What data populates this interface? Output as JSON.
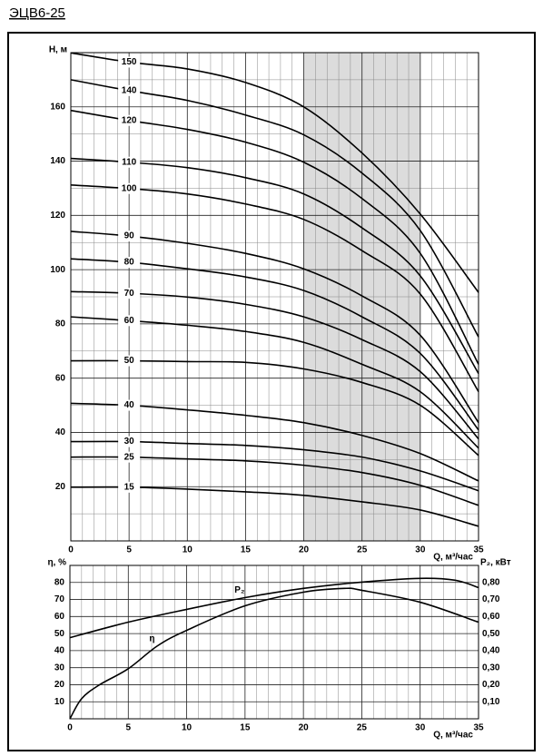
{
  "page_title": "ЭЦВ6-25",
  "chart_data": [
    {
      "type": "line",
      "x_label": "Q, м³/час",
      "y_label": "H, м",
      "x": [
        0,
        5,
        10,
        15,
        20,
        25,
        30,
        35
      ],
      "series": [
        {
          "name": "150",
          "color": "#000000",
          "values": [
            179.9,
            176.5,
            174,
            169,
            160,
            143,
            120.5,
            91.6
          ]
        },
        {
          "name": "140",
          "color": "#000000",
          "values": [
            170,
            166,
            162.4,
            157,
            149.7,
            135.6,
            114.4,
            75.2
          ]
        },
        {
          "name": "120",
          "color": "#000000",
          "values": [
            158.7,
            155,
            151.7,
            147,
            139.6,
            126.2,
            106,
            65.1
          ]
        },
        {
          "name": "110",
          "color": "#000000",
          "values": [
            141,
            139.6,
            137.6,
            133.9,
            127.9,
            115.4,
            97.7,
            61.7
          ]
        },
        {
          "name": "100",
          "color": "#000000",
          "values": [
            131.2,
            129.9,
            127.9,
            124.2,
            118.5,
            107,
            91,
            55
          ]
        },
        {
          "name": "90",
          "color": "#000000",
          "values": [
            114.1,
            112.4,
            109.7,
            106,
            100.3,
            90.3,
            75.8,
            43.6
          ]
        },
        {
          "name": "80",
          "color": "#000000",
          "values": [
            104,
            102.7,
            100.3,
            97.3,
            92.3,
            82.6,
            69.1,
            40.9
          ]
        },
        {
          "name": "70",
          "color": "#000000",
          "values": [
            91.9,
            91.3,
            89.9,
            87.2,
            82.6,
            74.2,
            62.4,
            37.6
          ]
        },
        {
          "name": "60",
          "color": "#000000",
          "values": [
            82.6,
            81.2,
            79.5,
            77.2,
            73.2,
            65.1,
            55,
            34.2
          ]
        },
        {
          "name": "50",
          "color": "#000000",
          "values": [
            66.4,
            66.4,
            66.1,
            65.8,
            63.4,
            58.4,
            50,
            31.5
          ]
        },
        {
          "name": "40",
          "color": "#000000",
          "values": [
            50.7,
            50,
            48.3,
            46.3,
            43.6,
            38.9,
            32.2,
            22.1
          ]
        },
        {
          "name": "30",
          "color": "#000000",
          "values": [
            36.6,
            36.6,
            35.9,
            35.2,
            33.6,
            30.9,
            25.8,
            18.5
          ]
        },
        {
          "name": "25",
          "color": "#000000",
          "values": [
            30.9,
            30.9,
            30.2,
            29.5,
            27.9,
            25.2,
            20.5,
            13.1
          ]
        },
        {
          "name": "15",
          "color": "#000000",
          "values": [
            19.8,
            19.8,
            19.1,
            18.1,
            16.8,
            14.4,
            11.4,
            5.4
          ]
        }
      ],
      "xlim": [
        0,
        35
      ],
      "xticks": [
        0,
        5,
        10,
        15,
        20,
        25,
        30,
        35
      ],
      "x_minor_ticks": [
        1,
        2,
        3,
        4,
        6,
        7,
        8,
        9,
        11,
        12,
        13,
        14,
        16,
        17,
        18,
        19,
        21,
        22,
        23,
        24,
        26,
        27,
        28,
        29,
        31,
        32,
        33,
        34
      ],
      "ylim": [
        0,
        180
      ],
      "yticks": [
        20,
        40,
        60,
        80,
        100,
        120,
        140,
        160
      ],
      "y_minor_ticks": [
        10,
        30,
        50,
        70,
        90,
        110,
        130,
        150,
        170
      ],
      "grid": true,
      "shaded_range": [
        20,
        30
      ],
      "shade_color": "#dcdcdc"
    },
    {
      "type": "line",
      "x_label": "Q, м³/час",
      "y_label": "η, %",
      "y2_label": "P₂, кВт",
      "series": [
        {
          "name": "η",
          "color": "#000000",
          "x": [
            0,
            1,
            2.5,
            5,
            7.5,
            10,
            15,
            20,
            23.5,
            25,
            30,
            35
          ],
          "values": [
            0,
            11.8,
            19.8,
            29.4,
            42.8,
            51.9,
            66.3,
            74.3,
            76.5,
            75.4,
            68.4,
            56.7
          ]
        },
        {
          "name": "P₂",
          "color": "#000000",
          "axis": "y2",
          "x": [
            0,
            5,
            10,
            15,
            20,
            25,
            30,
            33,
            35
          ],
          "values": [
            0.476,
            0.567,
            0.642,
            0.711,
            0.765,
            0.802,
            0.824,
            0.813,
            0.77
          ]
        }
      ],
      "xlim": [
        0,
        35
      ],
      "xticks": [
        0,
        5,
        10,
        15,
        20,
        25,
        30,
        35
      ],
      "x_minor_ticks": [
        1,
        2,
        3,
        4,
        6,
        7,
        8,
        9,
        11,
        12,
        13,
        14,
        16,
        17,
        18,
        19,
        21,
        22,
        23,
        24,
        26,
        27,
        28,
        29,
        31,
        32,
        33,
        34
      ],
      "ylim": [
        0,
        90
      ],
      "yticks": [
        10,
        20,
        30,
        40,
        50,
        60,
        70,
        80
      ],
      "y2lim": [
        0,
        0.9
      ],
      "y2ticks": [
        {
          "value": 0.1,
          "label": "0,10"
        },
        {
          "value": 0.2,
          "label": "0,20"
        },
        {
          "value": 0.3,
          "label": "0,30"
        },
        {
          "value": 0.4,
          "label": "0,40"
        },
        {
          "value": 0.5,
          "label": "0,50"
        },
        {
          "value": 0.6,
          "label": "0,60"
        },
        {
          "value": 0.7,
          "label": "0,70"
        },
        {
          "value": 0.8,
          "label": "0,80"
        }
      ],
      "grid": true
    }
  ]
}
